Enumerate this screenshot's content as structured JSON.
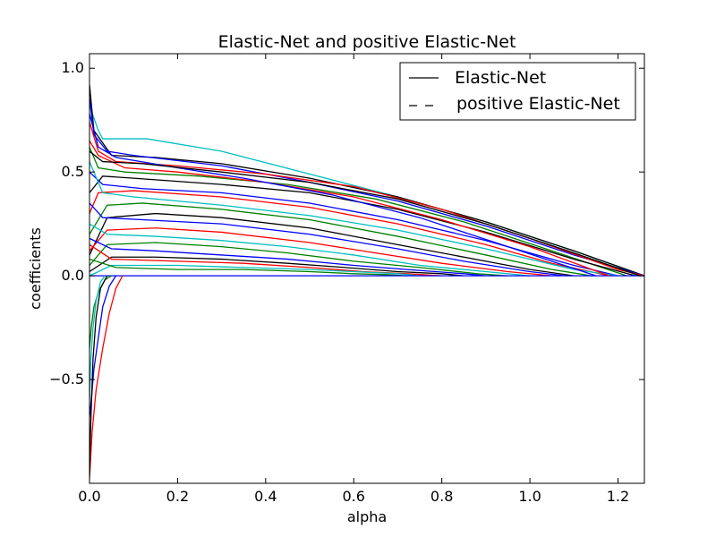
{
  "chart_data": {
    "type": "line",
    "title": "Elastic-Net and positive Elastic-Net",
    "xlabel": "alpha",
    "ylabel": "coefficients",
    "xlim": [
      0.0,
      1.26
    ],
    "ylim": [
      -1.0,
      1.07
    ],
    "xticks": [
      0.0,
      0.2,
      0.4,
      0.6,
      0.8,
      1.0,
      1.2
    ],
    "xtick_labels": [
      "0.0",
      "0.2",
      "0.4",
      "0.6",
      "0.8",
      "1.0",
      "1.2"
    ],
    "yticks": [
      -0.5,
      0.0,
      0.5,
      1.0
    ],
    "ytick_labels": [
      "−0.5",
      "0.0",
      "0.5",
      "1.0"
    ],
    "grid": false,
    "legend": {
      "placement": "top-right",
      "entries": [
        {
          "label": "Elastic-Net",
          "linestyle": "solid"
        },
        {
          "label": "positive Elastic-Net",
          "linestyle": "dashed"
        }
      ]
    },
    "colors": [
      "#000000",
      "#ff0000",
      "#0000ff",
      "#008000",
      "#00bfbf",
      "#bf00bf"
    ],
    "series": [
      {
        "color": "#00bfbf",
        "x": [
          0.0,
          0.02,
          0.03,
          0.13,
          0.3,
          0.5,
          0.7,
          0.9,
          1.1,
          1.26
        ],
        "y": [
          0.82,
          0.7,
          0.66,
          0.66,
          0.6,
          0.49,
          0.38,
          0.26,
          0.12,
          0.0
        ]
      },
      {
        "color": "#000000",
        "x": [
          0.0,
          0.01,
          0.05,
          0.15,
          0.3,
          0.5,
          0.7,
          0.9,
          1.1,
          1.26
        ],
        "y": [
          0.92,
          0.7,
          0.58,
          0.57,
          0.54,
          0.47,
          0.38,
          0.26,
          0.12,
          0.0
        ]
      },
      {
        "color": "#0000ff",
        "x": [
          0.0,
          0.01,
          0.04,
          0.1,
          0.3,
          0.5,
          0.7,
          0.9,
          1.1,
          1.26
        ],
        "y": [
          0.86,
          0.68,
          0.6,
          0.58,
          0.53,
          0.45,
          0.36,
          0.24,
          0.1,
          0.0
        ]
      },
      {
        "color": "#ff0000",
        "x": [
          0.0,
          0.02,
          0.06,
          0.2,
          0.4,
          0.6,
          0.8,
          1.0,
          1.2,
          1.26
        ],
        "y": [
          0.74,
          0.6,
          0.55,
          0.53,
          0.49,
          0.43,
          0.32,
          0.18,
          0.03,
          0.0
        ]
      },
      {
        "color": "#008000",
        "x": [
          0.0,
          0.02,
          0.08,
          0.25,
          0.45,
          0.65,
          0.85,
          1.05,
          1.22
        ],
        "y": [
          0.62,
          0.52,
          0.5,
          0.48,
          0.44,
          0.37,
          0.26,
          0.12,
          0.0
        ]
      },
      {
        "color": "#000000",
        "x": [
          0.0,
          0.03,
          0.1,
          0.3,
          0.5,
          0.7,
          0.9,
          1.1,
          1.24
        ],
        "y": [
          0.4,
          0.48,
          0.47,
          0.44,
          0.4,
          0.32,
          0.21,
          0.08,
          0.0
        ]
      },
      {
        "color": "#0000ff",
        "x": [
          0.0,
          0.03,
          0.12,
          0.3,
          0.5,
          0.7,
          0.9,
          1.1,
          1.2
        ],
        "y": [
          0.5,
          0.44,
          0.42,
          0.4,
          0.35,
          0.27,
          0.17,
          0.05,
          0.0
        ]
      },
      {
        "color": "#ff0000",
        "x": [
          0.0,
          0.02,
          0.1,
          0.3,
          0.5,
          0.7,
          0.9,
          1.05,
          1.18
        ],
        "y": [
          0.3,
          0.4,
          0.41,
          0.38,
          0.33,
          0.25,
          0.15,
          0.06,
          0.0
        ]
      },
      {
        "color": "#00bfbf",
        "x": [
          0.0,
          0.03,
          0.1,
          0.3,
          0.5,
          0.7,
          0.9,
          1.1,
          1.2
        ],
        "y": [
          0.55,
          0.4,
          0.38,
          0.34,
          0.29,
          0.22,
          0.13,
          0.03,
          0.0
        ]
      },
      {
        "color": "#008000",
        "x": [
          0.0,
          0.04,
          0.12,
          0.3,
          0.5,
          0.7,
          0.9,
          1.05,
          1.14
        ],
        "y": [
          0.2,
          0.34,
          0.35,
          0.32,
          0.27,
          0.19,
          0.1,
          0.03,
          0.0
        ]
      },
      {
        "color": "#000000",
        "x": [
          0.0,
          0.04,
          0.15,
          0.3,
          0.5,
          0.7,
          0.9,
          1.0,
          1.1
        ],
        "y": [
          0.1,
          0.28,
          0.3,
          0.28,
          0.23,
          0.15,
          0.07,
          0.03,
          0.0
        ]
      },
      {
        "color": "#0000ff",
        "x": [
          0.0,
          0.03,
          0.12,
          0.3,
          0.5,
          0.7,
          0.85,
          1.0,
          1.08
        ],
        "y": [
          0.35,
          0.28,
          0.27,
          0.25,
          0.2,
          0.13,
          0.07,
          0.02,
          0.0
        ]
      },
      {
        "color": "#ff0000",
        "x": [
          0.0,
          0.04,
          0.15,
          0.3,
          0.5,
          0.65,
          0.8,
          0.95,
          1.05
        ],
        "y": [
          0.12,
          0.22,
          0.23,
          0.21,
          0.16,
          0.11,
          0.06,
          0.02,
          0.0
        ]
      },
      {
        "color": "#00bfbf",
        "x": [
          0.0,
          0.04,
          0.15,
          0.3,
          0.45,
          0.6,
          0.75,
          0.9,
          1.0
        ],
        "y": [
          0.25,
          0.2,
          0.19,
          0.17,
          0.14,
          0.1,
          0.05,
          0.02,
          0.0
        ]
      },
      {
        "color": "#008000",
        "x": [
          0.0,
          0.04,
          0.15,
          0.3,
          0.45,
          0.6,
          0.75,
          0.88,
          0.95
        ],
        "y": [
          0.05,
          0.15,
          0.16,
          0.14,
          0.11,
          0.07,
          0.04,
          0.01,
          0.0
        ]
      },
      {
        "color": "#0000ff",
        "x": [
          0.0,
          0.05,
          0.15,
          0.3,
          0.45,
          0.6,
          0.72,
          0.85,
          0.9
        ],
        "y": [
          0.18,
          0.13,
          0.12,
          0.1,
          0.08,
          0.05,
          0.03,
          0.01,
          0.0
        ]
      },
      {
        "color": "#000000",
        "x": [
          0.0,
          0.05,
          0.15,
          0.3,
          0.45,
          0.58,
          0.7,
          0.8,
          0.85
        ],
        "y": [
          0.02,
          0.09,
          0.09,
          0.08,
          0.06,
          0.04,
          0.02,
          0.01,
          0.0
        ]
      },
      {
        "color": "#ff0000",
        "x": [
          0.0,
          0.05,
          0.2,
          0.35,
          0.5,
          0.62,
          0.72,
          0.8
        ],
        "y": [
          0.15,
          0.08,
          0.07,
          0.06,
          0.04,
          0.02,
          0.01,
          0.0
        ]
      },
      {
        "color": "#00bfbf",
        "x": [
          0.0,
          0.05,
          0.2,
          0.35,
          0.5,
          0.6,
          0.7,
          0.75
        ],
        "y": [
          0.0,
          0.05,
          0.05,
          0.04,
          0.03,
          0.02,
          0.01,
          0.0
        ]
      },
      {
        "color": "#008000",
        "x": [
          0.0,
          0.06,
          0.2,
          0.35,
          0.5,
          0.6,
          0.68,
          0.72
        ],
        "y": [
          0.08,
          0.04,
          0.03,
          0.03,
          0.02,
          0.01,
          0.005,
          0.0
        ]
      },
      {
        "color": "#0000ff",
        "x": [
          0.0,
          0.05,
          0.2,
          0.4,
          0.6,
          0.8,
          1.0,
          1.2,
          1.26
        ],
        "y": [
          0.0,
          0.0,
          0.0,
          0.0,
          0.0,
          0.0,
          0.0,
          0.0,
          0.0
        ]
      },
      {
        "color": "#0000ff",
        "x": [
          0.0,
          0.004,
          0.01,
          0.02,
          0.03,
          0.045,
          0.06
        ],
        "y": [
          -0.68,
          -0.6,
          -0.45,
          -0.3,
          -0.15,
          -0.05,
          0.0
        ]
      },
      {
        "color": "#ff0000",
        "x": [
          0.0,
          0.006,
          0.015,
          0.03,
          0.045,
          0.06,
          0.075
        ],
        "y": [
          -0.98,
          -0.75,
          -0.55,
          -0.35,
          -0.18,
          -0.06,
          0.0
        ]
      },
      {
        "color": "#008000",
        "x": [
          0.0,
          0.004,
          0.01,
          0.02,
          0.035,
          0.05
        ],
        "y": [
          -0.35,
          -0.25,
          -0.15,
          -0.08,
          -0.02,
          0.0
        ]
      },
      {
        "color": "#000000",
        "x": [
          0.0,
          0.003,
          0.008,
          0.015,
          0.025,
          0.04
        ],
        "y": [
          -0.96,
          -0.7,
          -0.4,
          -0.2,
          -0.06,
          0.0
        ]
      },
      {
        "color": "#00bfbf",
        "x": [
          0.0,
          0.003,
          0.008,
          0.015,
          0.025,
          0.035
        ],
        "y": [
          -0.6,
          -0.4,
          -0.25,
          -0.12,
          -0.03,
          0.0
        ]
      },
      {
        "color": "#ff0000",
        "x": [
          0.0,
          0.02,
          0.08,
          0.2,
          0.4,
          0.6,
          0.8,
          1.0,
          1.18
        ],
        "y": [
          0.65,
          0.58,
          0.52,
          0.5,
          0.45,
          0.38,
          0.27,
          0.14,
          0.0
        ]
      },
      {
        "color": "#0000ff",
        "x": [
          0.0,
          0.02,
          0.06,
          0.2,
          0.35,
          0.55,
          0.75,
          0.95,
          1.15
        ],
        "y": [
          0.78,
          0.62,
          0.57,
          0.52,
          0.47,
          0.39,
          0.28,
          0.14,
          0.0
        ]
      },
      {
        "color": "#000000",
        "x": [
          0.0,
          0.03,
          0.12,
          0.3,
          0.5,
          0.7,
          0.9,
          1.1,
          1.25
        ],
        "y": [
          0.6,
          0.55,
          0.54,
          0.5,
          0.45,
          0.37,
          0.25,
          0.11,
          0.0
        ]
      }
    ]
  }
}
